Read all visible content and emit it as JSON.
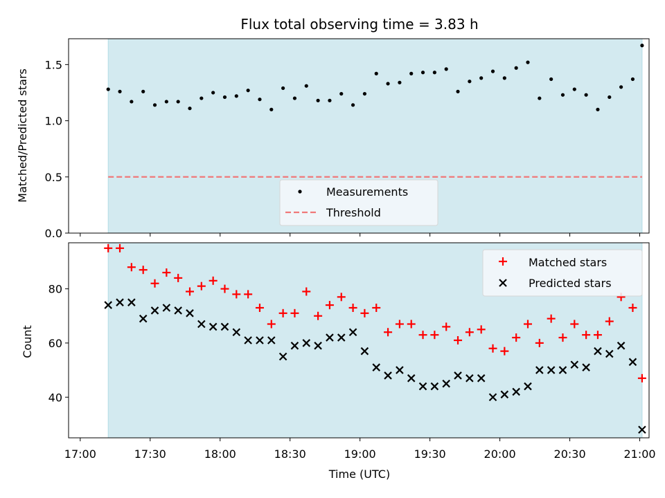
{
  "colors": {
    "shade": "#d3eaf0",
    "shade_edge": "#b4dce4",
    "threshold": "#f07878",
    "matched": "#ff0000",
    "predicted": "#000000",
    "measurement": "#000000",
    "legend_bg": "#f4f8fb"
  },
  "chart_data": [
    {
      "type": "scatter",
      "title": "Flux total observing time = 3.83 h",
      "xlabel": "",
      "ylabel": "Matched/Predicted stars",
      "xlim": [
        1015,
        1264
      ],
      "ylim": [
        0,
        1.73
      ],
      "yticks": [
        0.0,
        0.5,
        1.0,
        1.5
      ],
      "ytick_labels": [
        "0.0",
        "0.5",
        "1.0",
        "1.5"
      ],
      "shaded_span": [
        1032,
        1261
      ],
      "series": [
        {
          "name": "Measurements",
          "kind": "dot",
          "x": [
            1032,
            1037,
            1042,
            1047,
            1052,
            1057,
            1062,
            1067,
            1072,
            1077,
            1082,
            1087,
            1092,
            1097,
            1102,
            1107,
            1112,
            1117,
            1122,
            1127,
            1132,
            1137,
            1142,
            1147,
            1152,
            1157,
            1162,
            1167,
            1172,
            1177,
            1182,
            1187,
            1192,
            1197,
            1202,
            1207,
            1212,
            1217,
            1222,
            1227,
            1232,
            1237,
            1242,
            1247,
            1252,
            1257,
            1261
          ],
          "values": [
            1.28,
            1.26,
            1.17,
            1.26,
            1.14,
            1.17,
            1.17,
            1.11,
            1.2,
            1.25,
            1.21,
            1.22,
            1.27,
            1.19,
            1.1,
            1.29,
            1.2,
            1.31,
            1.18,
            1.18,
            1.24,
            1.14,
            1.24,
            1.42,
            1.33,
            1.34,
            1.42,
            1.43,
            1.43,
            1.46,
            1.26,
            1.35,
            1.38,
            1.44,
            1.38,
            1.47,
            1.52,
            1.2,
            1.37,
            1.23,
            1.28,
            1.23,
            1.1,
            1.21,
            1.3,
            1.37,
            1.67
          ]
        },
        {
          "name": "Threshold",
          "kind": "hline",
          "value": 0.5,
          "x_range": [
            1032,
            1261
          ]
        }
      ],
      "legend": {
        "placement": "lower-center",
        "entries": [
          "Measurements",
          "Threshold"
        ]
      }
    },
    {
      "type": "scatter",
      "title": "",
      "xlabel": "Time (UTC)",
      "ylabel": "Count",
      "xlim": [
        1015,
        1264
      ],
      "ylim": [
        25,
        97
      ],
      "yticks": [
        40,
        60,
        80
      ],
      "ytick_labels": [
        "40",
        "60",
        "80"
      ],
      "xticks": [
        1020,
        1050,
        1080,
        1110,
        1140,
        1170,
        1200,
        1230,
        1260
      ],
      "xtick_labels": [
        "17:00",
        "17:30",
        "18:00",
        "18:30",
        "19:00",
        "19:30",
        "20:00",
        "20:30",
        "21:00"
      ],
      "shaded_span": [
        1032,
        1261
      ],
      "series": [
        {
          "name": "Matched stars",
          "kind": "plus",
          "x": [
            1032,
            1037,
            1042,
            1047,
            1052,
            1057,
            1062,
            1067,
            1072,
            1077,
            1082,
            1087,
            1092,
            1097,
            1102,
            1107,
            1112,
            1117,
            1122,
            1127,
            1132,
            1137,
            1142,
            1147,
            1152,
            1157,
            1162,
            1167,
            1172,
            1177,
            1182,
            1187,
            1192,
            1197,
            1202,
            1207,
            1212,
            1217,
            1222,
            1227,
            1232,
            1237,
            1242,
            1247,
            1252,
            1257,
            1261
          ],
          "values": [
            95,
            95,
            88,
            87,
            82,
            86,
            84,
            79,
            81,
            83,
            80,
            78,
            78,
            73,
            67,
            71,
            71,
            79,
            70,
            74,
            77,
            73,
            71,
            73,
            64,
            67,
            67,
            63,
            63,
            66,
            61,
            64,
            65,
            58,
            57,
            62,
            67,
            60,
            69,
            62,
            67,
            63,
            63,
            68,
            77,
            73,
            47
          ]
        },
        {
          "name": "Predicted stars",
          "kind": "x",
          "x": [
            1032,
            1037,
            1042,
            1047,
            1052,
            1057,
            1062,
            1067,
            1072,
            1077,
            1082,
            1087,
            1092,
            1097,
            1102,
            1107,
            1112,
            1117,
            1122,
            1127,
            1132,
            1137,
            1142,
            1147,
            1152,
            1157,
            1162,
            1167,
            1172,
            1177,
            1182,
            1187,
            1192,
            1197,
            1202,
            1207,
            1212,
            1217,
            1222,
            1227,
            1232,
            1237,
            1242,
            1247,
            1252,
            1257,
            1261
          ],
          "values": [
            74,
            75,
            75,
            69,
            72,
            73,
            72,
            71,
            67,
            66,
            66,
            64,
            61,
            61,
            61,
            55,
            59,
            60,
            59,
            62,
            62,
            64,
            57,
            51,
            48,
            50,
            47,
            44,
            44,
            45,
            48,
            47,
            47,
            40,
            41,
            42,
            44,
            50,
            50,
            50,
            52,
            51,
            57,
            56,
            59,
            53,
            28
          ]
        }
      ],
      "legend": {
        "placement": "top-right",
        "entries": [
          "Matched stars",
          "Predicted stars"
        ]
      }
    }
  ]
}
